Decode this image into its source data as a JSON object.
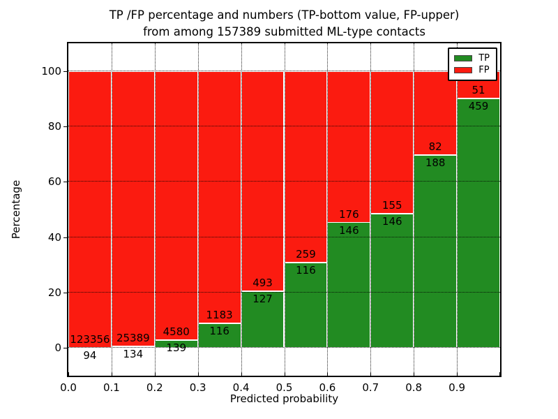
{
  "figure": {
    "title_line1": "TP /FP percentage and numbers (TP-bottom value, FP-upper)",
    "title_line2": "from among 157389 submitted ML-type contacts"
  },
  "chart_data": {
    "type": "bar",
    "stacked": true,
    "percent_normalized": true,
    "title": "TP /FP percentage and numbers (TP-bottom value, FP-upper) from among 157389 submitted ML-type contacts",
    "total_contacts": 157389,
    "xlabel": "Predicted probability",
    "ylabel": "Percentage",
    "x_bin_edges": [
      0.0,
      0.1,
      0.2,
      0.3,
      0.4,
      0.5,
      0.6,
      0.7,
      0.8,
      0.9,
      1.0
    ],
    "x_tick_labels": [
      "0.0",
      "0.1",
      "0.2",
      "0.3",
      "0.4",
      "0.5",
      "0.6",
      "0.7",
      "0.8",
      "0.9"
    ],
    "y_ticks": [
      0,
      20,
      40,
      60,
      80,
      100
    ],
    "ylim": [
      -10,
      110
    ],
    "xlim": [
      0.0,
      1.0
    ],
    "grid": true,
    "series": [
      {
        "name": "TP",
        "color": "#228b22",
        "counts": [
          94,
          134,
          139,
          116,
          127,
          116,
          146,
          146,
          188,
          459
        ]
      },
      {
        "name": "FP",
        "color": "#fb1b10",
        "counts": [
          123356,
          25389,
          4580,
          1183,
          493,
          259,
          176,
          155,
          82,
          51
        ]
      }
    ],
    "legend": {
      "location": "upper right",
      "entries": [
        {
          "label": "TP",
          "color": "#228b22"
        },
        {
          "label": "FP",
          "color": "#fb1b10"
        }
      ]
    }
  },
  "colors": {
    "tp_green": "#228b22",
    "fp_red": "#fb1b10",
    "grid": "#000000",
    "spine": "#000000",
    "background": "#ffffff"
  }
}
